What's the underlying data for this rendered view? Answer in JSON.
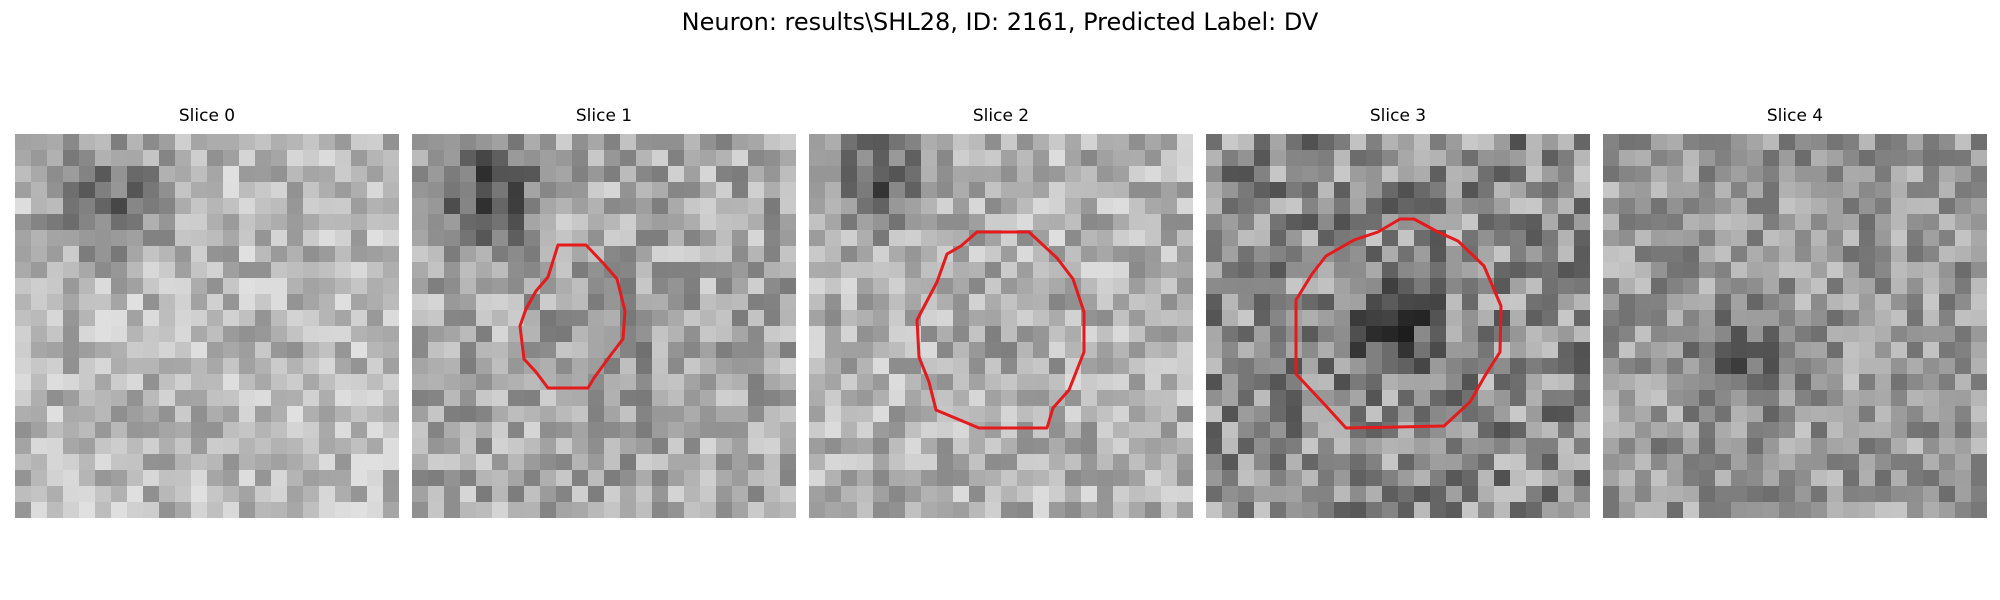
{
  "figure": {
    "title": "Neuron: results\\SHL28, ID: 2161, Predicted Label: DV"
  },
  "slices": [
    {
      "title": "Slice 0",
      "has_contour": false,
      "seed": 11,
      "bg_shade": 0.72,
      "contrast": 0.16,
      "dark_blob": [
        0.25,
        0.18,
        0.22,
        0.35
      ]
    },
    {
      "title": "Slice 1",
      "has_contour": true,
      "seed": 23,
      "bg_shade": 0.66,
      "contrast": 0.18,
      "dark_blob": [
        0.2,
        0.15,
        0.2,
        0.42
      ]
    },
    {
      "title": "Slice 2",
      "has_contour": true,
      "seed": 37,
      "bg_shade": 0.7,
      "contrast": 0.17,
      "dark_blob": [
        0.18,
        0.12,
        0.18,
        0.45
      ]
    },
    {
      "title": "Slice 3",
      "has_contour": true,
      "seed": 41,
      "bg_shade": 0.55,
      "contrast": 0.24,
      "dark_blob": [
        0.5,
        0.5,
        0.18,
        0.25
      ]
    },
    {
      "title": "Slice 4",
      "has_contour": false,
      "seed": 53,
      "bg_shade": 0.6,
      "contrast": 0.18,
      "dark_blob": [
        0.35,
        0.6,
        0.2,
        0.2
      ]
    }
  ],
  "colors": {
    "contour": "#e41a1c"
  }
}
